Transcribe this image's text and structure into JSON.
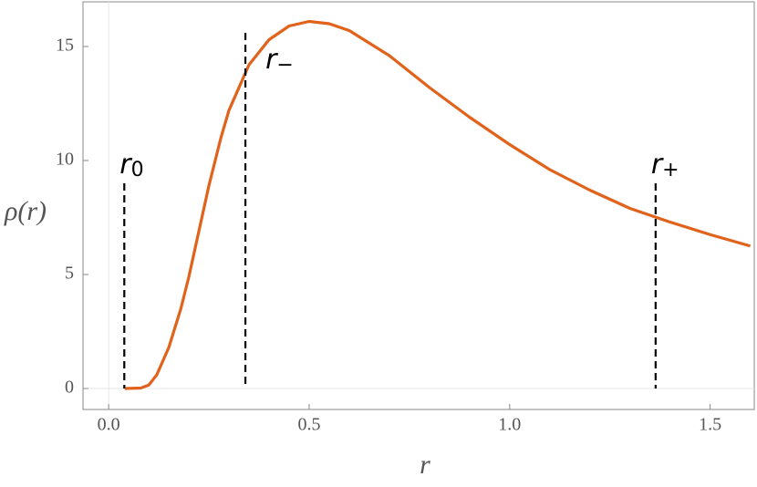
{
  "chart_data": {
    "type": "line",
    "x_label": "r",
    "y_label": "ρ(r)",
    "xlim": [
      -0.064,
      1.61
    ],
    "ylim": [
      -0.92,
      16.96
    ],
    "xticks": [
      {
        "value": 0,
        "label": "0.0"
      },
      0.5,
      {
        "value": 1,
        "label": "1.0"
      },
      1.5
    ],
    "yticks": [
      0,
      5,
      10,
      15
    ],
    "origin_lines": true,
    "series": [
      {
        "color": "#e0621b",
        "x": [
          0.04,
          0.08,
          0.1,
          0.12,
          0.15,
          0.18,
          0.2,
          0.22,
          0.25,
          0.28,
          0.3,
          0.35,
          0.4,
          0.45,
          0.5,
          0.55,
          0.6,
          0.7,
          0.8,
          0.9,
          1.0,
          1.1,
          1.2,
          1.3,
          1.4,
          1.5,
          1.6
        ],
        "values": [
          0,
          0.02,
          0.15,
          0.6,
          1.8,
          3.5,
          4.9,
          6.5,
          8.9,
          11.0,
          12.2,
          14.2,
          15.3,
          15.9,
          16.1,
          16.0,
          15.7,
          14.6,
          13.2,
          11.9,
          10.7,
          9.6,
          8.7,
          7.9,
          7.3,
          6.75,
          6.25
        ]
      }
    ],
    "markers": [
      {
        "label": "r",
        "subscript": "0",
        "x": 0.039,
        "y": 9.0,
        "label_position": "above"
      },
      {
        "label": "r",
        "subscript": "−",
        "x": 0.341,
        "y": 15.6,
        "label_position": "right"
      },
      {
        "label": "r",
        "subscript": "+",
        "x": 1.364,
        "y": 9.0,
        "label_position": "above"
      }
    ]
  }
}
